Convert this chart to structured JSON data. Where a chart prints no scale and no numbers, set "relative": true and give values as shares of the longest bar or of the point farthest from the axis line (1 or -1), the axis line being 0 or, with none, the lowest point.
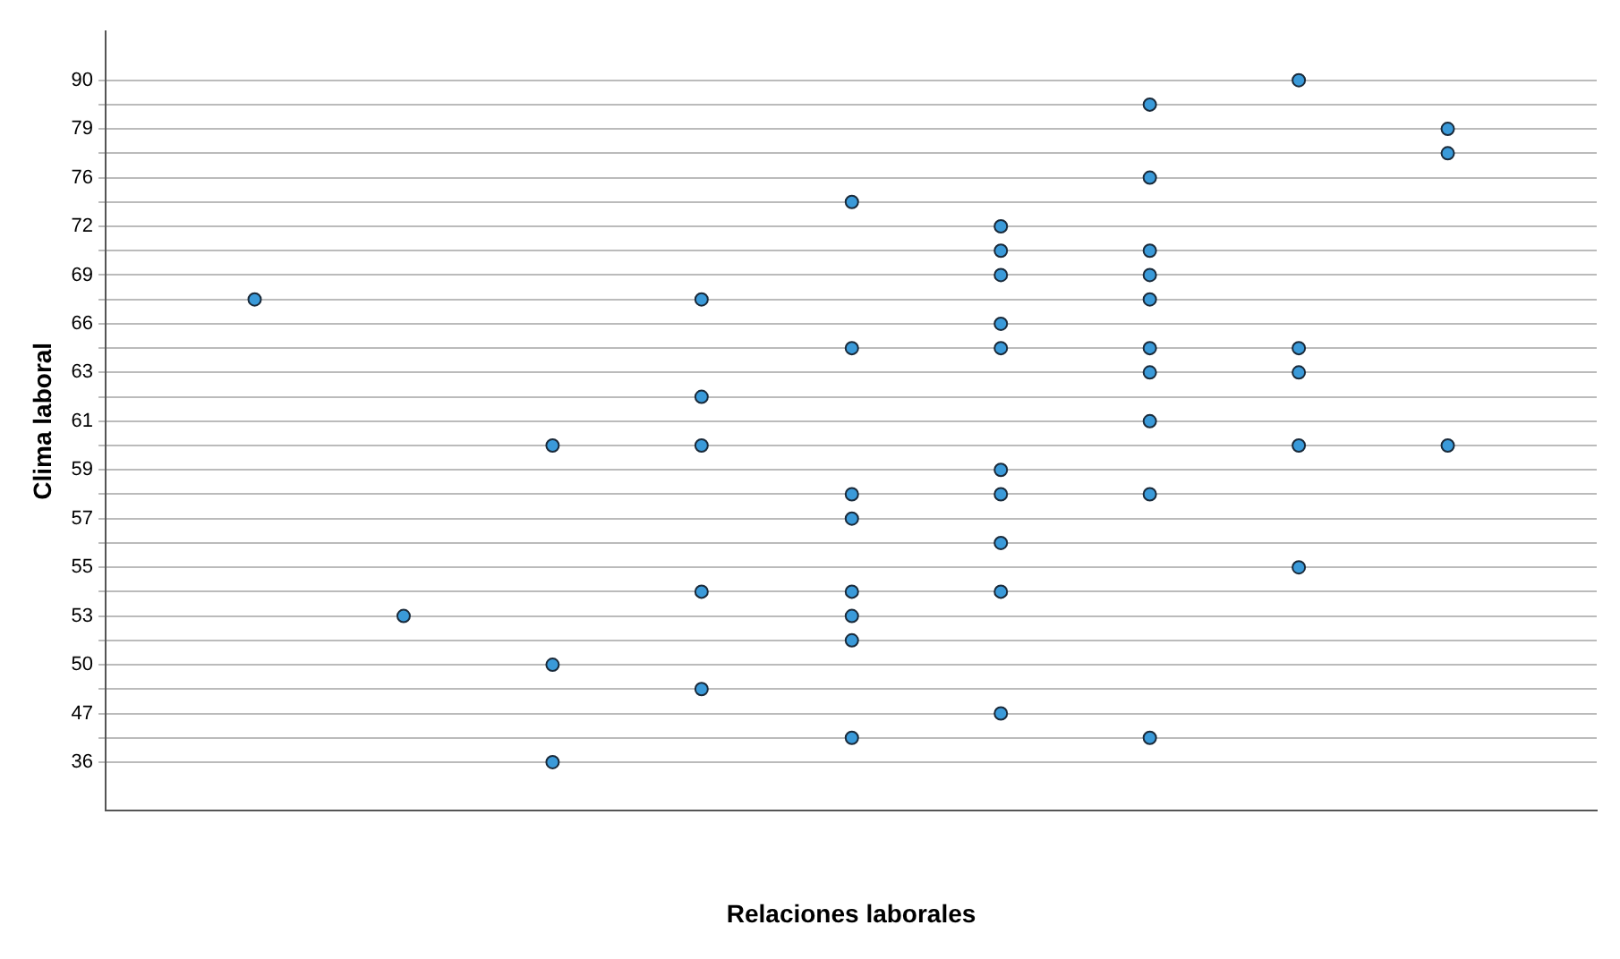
{
  "chart_data": {
    "type": "scatter",
    "orientation": "horizontal",
    "relative": true,
    "xlabel": "Relaciones laborales",
    "ylabel": "Clima laboral",
    "categories": [
      "90",
      null,
      "79",
      null,
      "76",
      null,
      "72",
      null,
      "69",
      null,
      "66",
      null,
      "63",
      null,
      "61",
      null,
      "59",
      null,
      "57",
      null,
      "55",
      null,
      "53",
      null,
      "50",
      null,
      "47",
      null,
      "36"
    ],
    "grid": "y",
    "marker": "circle",
    "series": [
      {
        "color": "#3a9ad9",
        "values": [
          0.889,
          0.778,
          1,
          1,
          0.778,
          0.556,
          0.667,
          0.667,
          0.667,
          0.111,
          0.667,
          0.556,
          0.778,
          0.444,
          0.778,
          0.333,
          0.667,
          0.556,
          0.556,
          0.667,
          0.889,
          0.444,
          0.222,
          0.556,
          0.333,
          0.444,
          0.667,
          0.556,
          0.333
        ]
      },
      {
        "color": "#3a9ad9",
        "values": [
          null,
          null,
          null,
          null,
          null,
          null,
          null,
          0.778,
          0.778,
          0.444,
          null,
          0.667,
          0.889,
          null,
          null,
          0.444,
          null,
          0.667,
          null,
          null,
          null,
          0.556,
          0.556,
          null,
          null,
          null,
          null,
          0.778,
          null
        ]
      },
      {
        "color": "#3a9ad9",
        "values": [
          null,
          null,
          null,
          null,
          null,
          null,
          null,
          null,
          null,
          0.778,
          null,
          0.778,
          null,
          null,
          null,
          0.889,
          null,
          0.778,
          null,
          null,
          null,
          0.667,
          null,
          null,
          null,
          null,
          null,
          null,
          null
        ]
      },
      {
        "color": "#3a9ad9",
        "values": [
          null,
          null,
          null,
          null,
          null,
          null,
          null,
          null,
          null,
          null,
          null,
          0.889,
          null,
          null,
          null,
          1,
          null,
          null,
          null,
          null,
          null,
          null,
          null,
          null,
          null,
          null,
          null,
          null,
          null
        ]
      }
    ]
  }
}
